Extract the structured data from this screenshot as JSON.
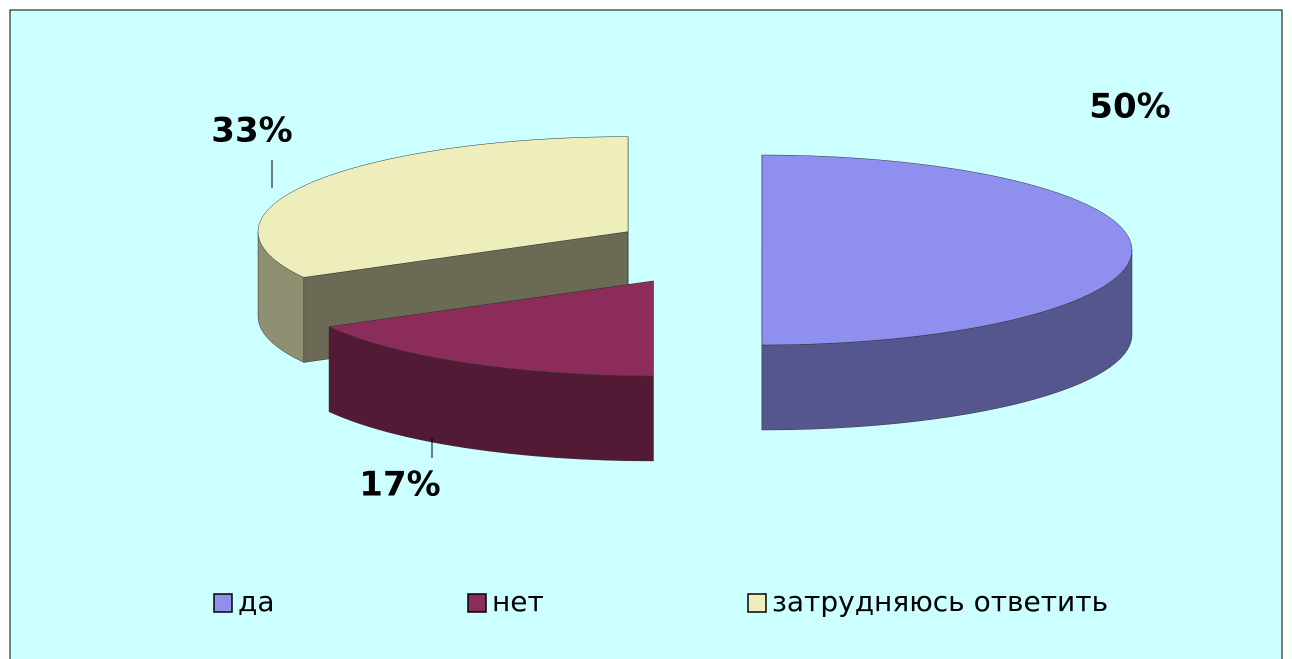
{
  "chart_data": {
    "type": "pie",
    "categories": [
      "да",
      "нет",
      "затрудняюсь ответить"
    ],
    "values": [
      50,
      17,
      33
    ],
    "value_labels": [
      "50%",
      "17%",
      "33%"
    ],
    "colors": [
      "#8f8fef",
      "#8b2c5a",
      "#eeeebd"
    ],
    "legend": "bottom"
  }
}
